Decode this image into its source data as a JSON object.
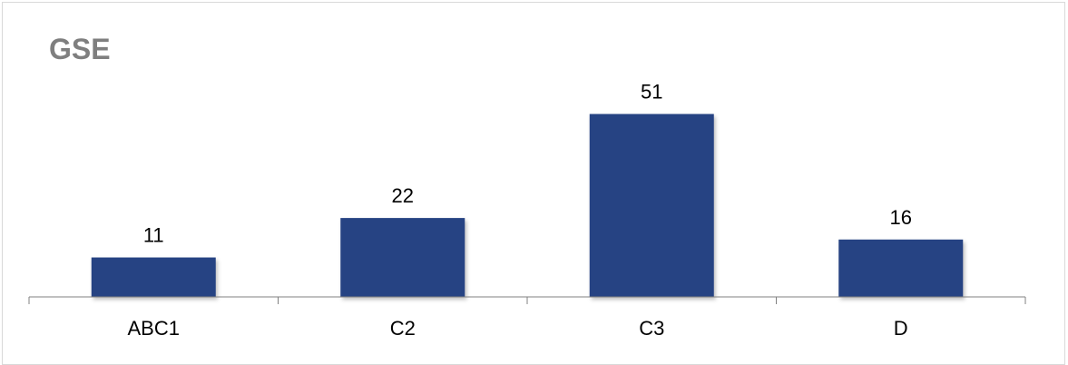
{
  "chart_data": {
    "type": "bar",
    "title": "GSE",
    "categories": [
      "ABC1",
      "C2",
      "C3",
      "D"
    ],
    "values": [
      11,
      22,
      51,
      16
    ],
    "xlabel": "",
    "ylabel": "",
    "ylim": [
      0,
      60
    ],
    "grid": false,
    "legend": "none",
    "data_labels": true,
    "colors": {
      "bar": "#264383",
      "title": "#7f7f7f",
      "axis": "#808080",
      "border": "#d9d9d9"
    }
  }
}
